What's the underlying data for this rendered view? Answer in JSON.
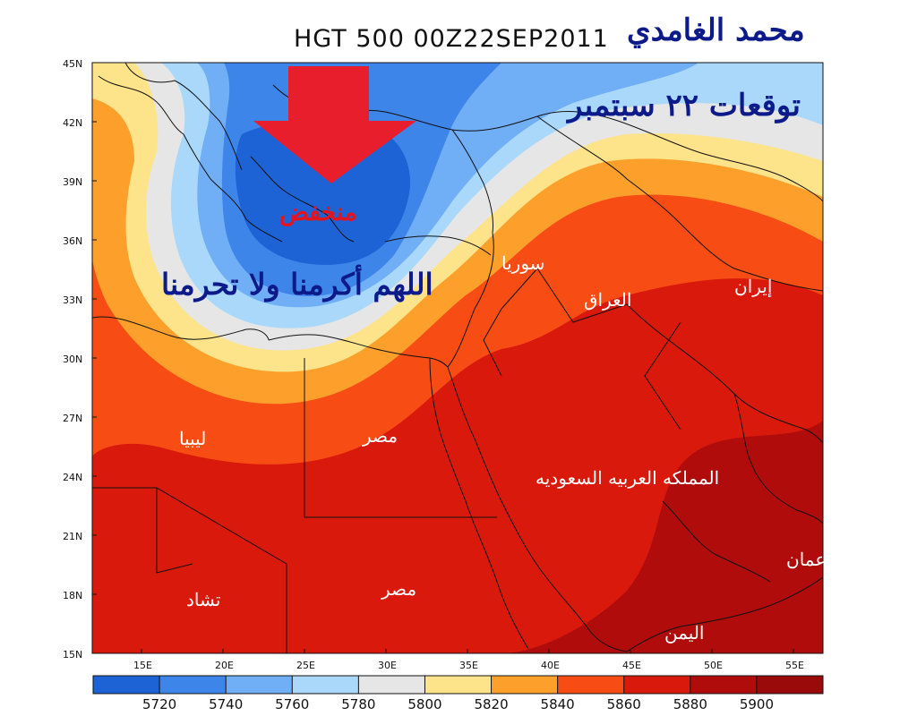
{
  "title": "HGT 500 00Z22SEP2011",
  "author": "محمد الغامدي",
  "forecast_text": "توقعات ٢٢ سبتمبر",
  "prayer_text": "اللهم أكرمنا ولا تحرمنا",
  "low_label": "منخفض",
  "countries": {
    "syria": "سوريا",
    "iraq": "العراق",
    "iran": "إيران",
    "libya": "ليبيا",
    "egypt_north": "مصر",
    "saudi": "المملكه العربيه السعوديه",
    "egypt_south": "مصر",
    "chad": "تشاد",
    "oman": "عمان",
    "yemen": "اليمن"
  },
  "axes": {
    "lat_labels": [
      "45N",
      "42N",
      "39N",
      "36N",
      "33N",
      "30N",
      "27N",
      "24N",
      "21N",
      "18N",
      "15N"
    ],
    "lon_labels": [
      "15E",
      "20E",
      "25E",
      "30E",
      "35E",
      "40E",
      "45E",
      "50E",
      "55E"
    ]
  },
  "colorbar": {
    "labels": [
      "5720",
      "5740",
      "5760",
      "5780",
      "5800",
      "5820",
      "5840",
      "5860",
      "5880",
      "5900"
    ],
    "colors": [
      "#1e63d6",
      "#3e85ea",
      "#70aef5",
      "#a9d8fa",
      "#e6e6e6",
      "#fde38a",
      "#fca02b",
      "#f74d14",
      "#d9190b",
      "#b00c0c"
    ]
  },
  "arrow_color": "#e81e2c"
}
